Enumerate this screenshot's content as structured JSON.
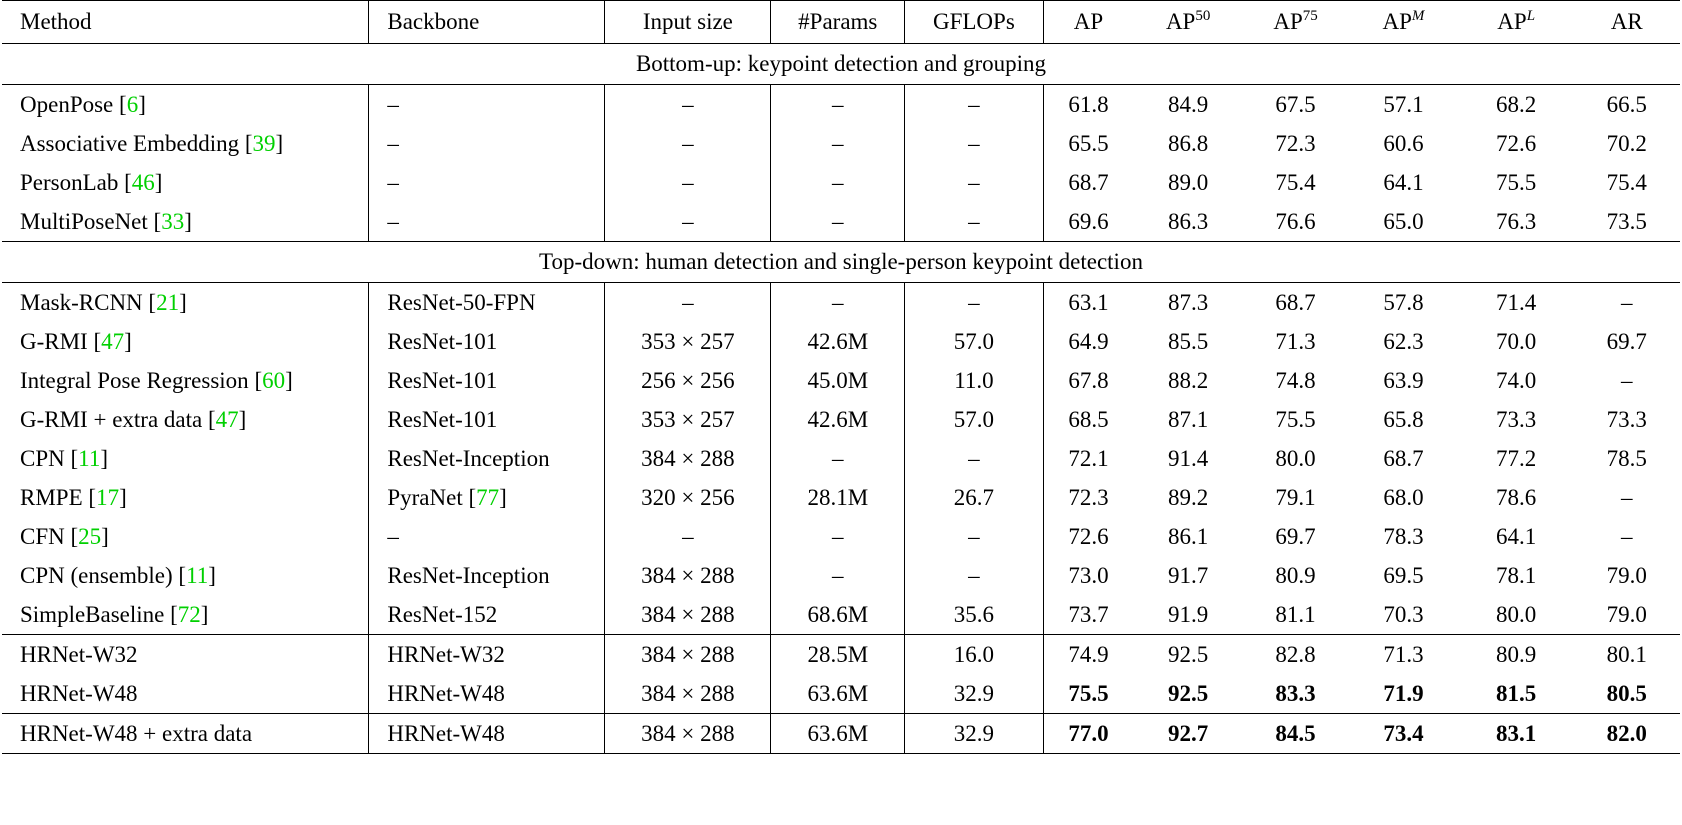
{
  "headers": {
    "method": "Method",
    "backbone": "Backbone",
    "input_size": "Input size",
    "params": "#Params",
    "gflops": "GFLOPs",
    "ap": "AP",
    "ap50_base": "AP",
    "ap50_sup": "50",
    "ap75_base": "AP",
    "ap75_sup": "75",
    "apm_base": "AP",
    "apm_sup": "M",
    "apl_base": "AP",
    "apl_sup": "L",
    "ar": "AR"
  },
  "sections": {
    "bottom_up": "Bottom-up: keypoint detection and grouping",
    "top_down": "Top-down: human detection and single-person keypoint detection"
  },
  "rows": [
    {
      "name": "OpenPose",
      "cite": "6",
      "backbone": "–",
      "input": "–",
      "params": "–",
      "gflops": "–",
      "ap": "61.8",
      "ap50": "84.9",
      "ap75": "67.5",
      "apm": "57.1",
      "apl": "68.2",
      "ar": "66.5"
    },
    {
      "name": "Associative Embedding",
      "cite": "39",
      "backbone": "–",
      "input": "–",
      "params": "–",
      "gflops": "–",
      "ap": "65.5",
      "ap50": "86.8",
      "ap75": "72.3",
      "apm": "60.6",
      "apl": "72.6",
      "ar": "70.2"
    },
    {
      "name": "PersonLab",
      "cite": "46",
      "backbone": "–",
      "input": "–",
      "params": "–",
      "gflops": "–",
      "ap": "68.7",
      "ap50": "89.0",
      "ap75": "75.4",
      "apm": "64.1",
      "apl": "75.5",
      "ar": "75.4"
    },
    {
      "name": "MultiPoseNet",
      "cite": "33",
      "backbone": "–",
      "input": "–",
      "params": "–",
      "gflops": "–",
      "ap": "69.6",
      "ap50": "86.3",
      "ap75": "76.6",
      "apm": "65.0",
      "apl": "76.3",
      "ar": "73.5"
    },
    {
      "name": "Mask-RCNN",
      "cite": "21",
      "backbone": "ResNet-50-FPN",
      "input": "–",
      "params": "–",
      "gflops": "–",
      "ap": "63.1",
      "ap50": "87.3",
      "ap75": "68.7",
      "apm": "57.8",
      "apl": "71.4",
      "ar": "–"
    },
    {
      "name": "G-RMI",
      "cite": "47",
      "backbone": "ResNet-101",
      "input": "353 × 257",
      "params": "42.6M",
      "gflops": "57.0",
      "ap": "64.9",
      "ap50": "85.5",
      "ap75": "71.3",
      "apm": "62.3",
      "apl": "70.0",
      "ar": "69.7"
    },
    {
      "name": "Integral Pose Regression",
      "cite": "60",
      "backbone": "ResNet-101",
      "input": "256 × 256",
      "params": "45.0M",
      "gflops": "11.0",
      "ap": "67.8",
      "ap50": "88.2",
      "ap75": "74.8",
      "apm": "63.9",
      "apl": "74.0",
      "ar": "–"
    },
    {
      "name": "G-RMI + extra data",
      "cite": "47",
      "backbone": "ResNet-101",
      "input": "353 × 257",
      "params": "42.6M",
      "gflops": "57.0",
      "ap": "68.5",
      "ap50": "87.1",
      "ap75": "75.5",
      "apm": "65.8",
      "apl": "73.3",
      "ar": "73.3"
    },
    {
      "name": "CPN",
      "cite": "11",
      "backbone": "ResNet-Inception",
      "input": "384 × 288",
      "params": "–",
      "gflops": "–",
      "ap": "72.1",
      "ap50": "91.4",
      "ap75": "80.0",
      "apm": "68.7",
      "apl": "77.2",
      "ar": "78.5"
    },
    {
      "name": "RMPE",
      "cite": "17",
      "backbone": "PyraNet",
      "backbone_cite": "77",
      "input": "320 × 256",
      "params": "28.1M",
      "gflops": "26.7",
      "ap": "72.3",
      "ap50": "89.2",
      "ap75": "79.1",
      "apm": "68.0",
      "apl": "78.6",
      "ar": "–"
    },
    {
      "name": "CFN",
      "cite": "25",
      "backbone": "–",
      "input": "–",
      "params": "–",
      "gflops": "–",
      "ap": "72.6",
      "ap50": "86.1",
      "ap75": "69.7",
      "apm": "78.3",
      "apl": "64.1",
      "ar": "–"
    },
    {
      "name": "CPN (ensemble)",
      "cite": "11",
      "backbone": "ResNet-Inception",
      "input": "384 × 288",
      "params": "–",
      "gflops": "–",
      "ap": "73.0",
      "ap50": "91.7",
      "ap75": "80.9",
      "apm": "69.5",
      "apl": "78.1",
      "ar": "79.0"
    },
    {
      "name": "SimpleBaseline",
      "cite": "72",
      "backbone": "ResNet-152",
      "input": "384 × 288",
      "params": "68.6M",
      "gflops": "35.6",
      "ap": "73.7",
      "ap50": "91.9",
      "ap75": "81.1",
      "apm": "70.3",
      "apl": "80.0",
      "ar": "79.0"
    },
    {
      "name": "HRNet-W32",
      "backbone": "HRNet-W32",
      "input": "384 × 288",
      "params": "28.5M",
      "gflops": "16.0",
      "ap": "74.9",
      "ap50": "92.5",
      "ap75": "82.8",
      "apm": "71.3",
      "apl": "80.9",
      "ar": "80.1"
    },
    {
      "name": "HRNet-W48",
      "backbone": "HRNet-W48",
      "input": "384 × 288",
      "params": "63.6M",
      "gflops": "32.9",
      "ap": "75.5",
      "ap50": "92.5",
      "ap75": "83.3",
      "apm": "71.9",
      "apl": "81.5",
      "ar": "80.5"
    },
    {
      "name": "HRNet-W48 + extra data",
      "backbone": "HRNet-W48",
      "input": "384 × 288",
      "params": "63.6M",
      "gflops": "32.9",
      "ap": "77.0",
      "ap50": "92.7",
      "ap75": "84.5",
      "apm": "73.4",
      "apl": "83.1",
      "ar": "82.0"
    }
  ]
}
